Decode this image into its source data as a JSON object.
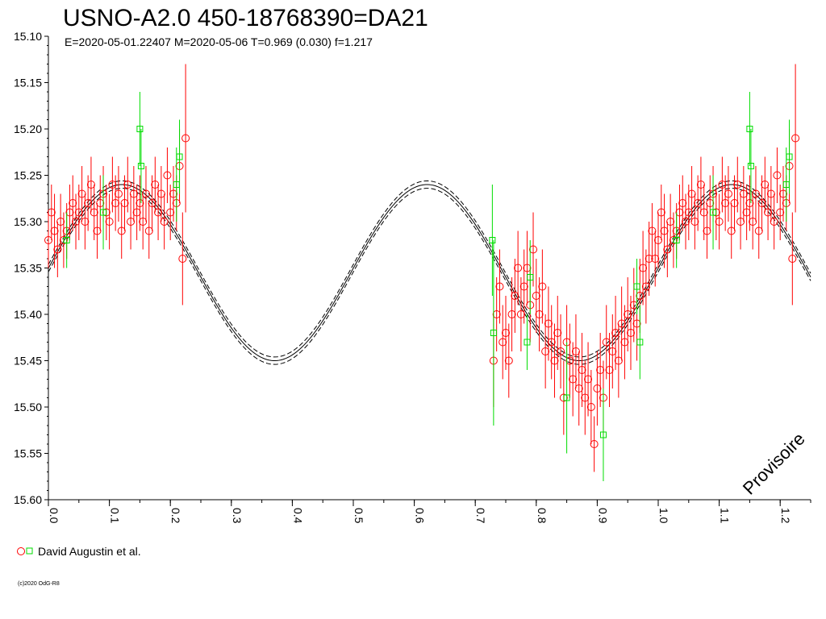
{
  "chart_data": {
    "type": "scatter",
    "title": "USNO-A2.0 450-18768390=DA21",
    "subtitle": "E=2020-05-01.22407    M=2020-05-06    T=0.969 (0.030)    f=1.217",
    "watermark": "Provisoire",
    "copyright": "(c)2020 OdG-R8",
    "xlabel": "",
    "ylabel": "",
    "xlim": [
      0.0,
      1.25
    ],
    "ylim": [
      15.6,
      15.1
    ],
    "y_inverted": true,
    "x_ticks": [
      "0.0",
      "0.1",
      "0.2",
      "0.3",
      "0.4",
      "0.5",
      "0.6",
      "0.7",
      "0.8",
      "0.9",
      "1.0",
      "1.1",
      "1.2"
    ],
    "y_ticks": [
      "15.10",
      "15.15",
      "15.20",
      "15.25",
      "15.30",
      "15.35",
      "15.40",
      "15.45",
      "15.50",
      "15.55",
      "15.60"
    ],
    "grid": false,
    "legend": {
      "placement": "bottom-left",
      "label": "David Augustin et al.",
      "marker_colors": [
        "#ff0000",
        "#00dd00"
      ]
    },
    "model_curve": {
      "type": "sinusoid",
      "period_phase": 0.5,
      "mean_mag": 15.355,
      "amplitude": 0.095,
      "max_brightness_phase": 0.121,
      "envelope": 0.004,
      "color": "#000000"
    },
    "series": [
      {
        "marker": "circle",
        "color": "#ff0000",
        "points": [
          {
            "x": 0.0,
            "y": 15.32,
            "err": 0.03
          },
          {
            "x": 0.005,
            "y": 15.29,
            "err": 0.03
          },
          {
            "x": 0.01,
            "y": 15.31,
            "err": 0.04
          },
          {
            "x": 0.015,
            "y": 15.33,
            "err": 0.03
          },
          {
            "x": 0.02,
            "y": 15.3,
            "err": 0.03
          },
          {
            "x": 0.025,
            "y": 15.32,
            "err": 0.03
          },
          {
            "x": 0.03,
            "y": 15.31,
            "err": 0.03
          },
          {
            "x": 0.035,
            "y": 15.29,
            "err": 0.03
          },
          {
            "x": 0.04,
            "y": 15.28,
            "err": 0.03
          },
          {
            "x": 0.045,
            "y": 15.3,
            "err": 0.03
          },
          {
            "x": 0.05,
            "y": 15.29,
            "err": 0.03
          },
          {
            "x": 0.055,
            "y": 15.27,
            "err": 0.03
          },
          {
            "x": 0.06,
            "y": 15.3,
            "err": 0.03
          },
          {
            "x": 0.065,
            "y": 15.28,
            "err": 0.03
          },
          {
            "x": 0.07,
            "y": 15.26,
            "err": 0.03
          },
          {
            "x": 0.075,
            "y": 15.29,
            "err": 0.03
          },
          {
            "x": 0.08,
            "y": 15.31,
            "err": 0.03
          },
          {
            "x": 0.085,
            "y": 15.28,
            "err": 0.03
          },
          {
            "x": 0.09,
            "y": 15.27,
            "err": 0.03
          },
          {
            "x": 0.095,
            "y": 15.29,
            "err": 0.03
          },
          {
            "x": 0.1,
            "y": 15.3,
            "err": 0.03
          },
          {
            "x": 0.105,
            "y": 15.26,
            "err": 0.03
          },
          {
            "x": 0.11,
            "y": 15.28,
            "err": 0.03
          },
          {
            "x": 0.115,
            "y": 15.27,
            "err": 0.03
          },
          {
            "x": 0.12,
            "y": 15.31,
            "err": 0.03
          },
          {
            "x": 0.125,
            "y": 15.28,
            "err": 0.03
          },
          {
            "x": 0.13,
            "y": 15.26,
            "err": 0.03
          },
          {
            "x": 0.135,
            "y": 15.3,
            "err": 0.03
          },
          {
            "x": 0.14,
            "y": 15.27,
            "err": 0.03
          },
          {
            "x": 0.145,
            "y": 15.29,
            "err": 0.03
          },
          {
            "x": 0.15,
            "y": 15.28,
            "err": 0.03
          },
          {
            "x": 0.155,
            "y": 15.3,
            "err": 0.03
          },
          {
            "x": 0.16,
            "y": 15.27,
            "err": 0.03
          },
          {
            "x": 0.165,
            "y": 15.31,
            "err": 0.03
          },
          {
            "x": 0.17,
            "y": 15.28,
            "err": 0.03
          },
          {
            "x": 0.175,
            "y": 15.26,
            "err": 0.03
          },
          {
            "x": 0.18,
            "y": 15.29,
            "err": 0.03
          },
          {
            "x": 0.185,
            "y": 15.27,
            "err": 0.03
          },
          {
            "x": 0.19,
            "y": 15.3,
            "err": 0.03
          },
          {
            "x": 0.195,
            "y": 15.25,
            "err": 0.03
          },
          {
            "x": 0.2,
            "y": 15.29,
            "err": 0.03
          },
          {
            "x": 0.205,
            "y": 15.27,
            "err": 0.03
          },
          {
            "x": 0.21,
            "y": 15.28,
            "err": 0.03
          },
          {
            "x": 0.215,
            "y": 15.24,
            "err": 0.04
          },
          {
            "x": 0.22,
            "y": 15.34,
            "err": 0.05
          },
          {
            "x": 0.225,
            "y": 15.21,
            "err": 0.08
          },
          {
            "x": 0.73,
            "y": 15.45,
            "err": 0.05
          },
          {
            "x": 0.735,
            "y": 15.4,
            "err": 0.04
          },
          {
            "x": 0.74,
            "y": 15.37,
            "err": 0.04
          },
          {
            "x": 0.745,
            "y": 15.43,
            "err": 0.04
          },
          {
            "x": 0.75,
            "y": 15.42,
            "err": 0.04
          },
          {
            "x": 0.755,
            "y": 15.45,
            "err": 0.04
          },
          {
            "x": 0.76,
            "y": 15.4,
            "err": 0.04
          },
          {
            "x": 0.765,
            "y": 15.38,
            "err": 0.04
          },
          {
            "x": 0.77,
            "y": 15.35,
            "err": 0.04
          },
          {
            "x": 0.775,
            "y": 15.4,
            "err": 0.04
          },
          {
            "x": 0.78,
            "y": 15.37,
            "err": 0.04
          },
          {
            "x": 0.785,
            "y": 15.35,
            "err": 0.04
          },
          {
            "x": 0.79,
            "y": 15.39,
            "err": 0.04
          },
          {
            "x": 0.795,
            "y": 15.33,
            "err": 0.04
          },
          {
            "x": 0.8,
            "y": 15.38,
            "err": 0.04
          },
          {
            "x": 0.805,
            "y": 15.4,
            "err": 0.04
          },
          {
            "x": 0.81,
            "y": 15.37,
            "err": 0.04
          },
          {
            "x": 0.815,
            "y": 15.44,
            "err": 0.04
          },
          {
            "x": 0.82,
            "y": 15.41,
            "err": 0.04
          },
          {
            "x": 0.825,
            "y": 15.43,
            "err": 0.04
          },
          {
            "x": 0.83,
            "y": 15.45,
            "err": 0.04
          },
          {
            "x": 0.835,
            "y": 15.42,
            "err": 0.04
          },
          {
            "x": 0.84,
            "y": 15.44,
            "err": 0.04
          },
          {
            "x": 0.845,
            "y": 15.49,
            "err": 0.04
          },
          {
            "x": 0.85,
            "y": 15.43,
            "err": 0.04
          },
          {
            "x": 0.855,
            "y": 15.45,
            "err": 0.04
          },
          {
            "x": 0.86,
            "y": 15.47,
            "err": 0.04
          },
          {
            "x": 0.865,
            "y": 15.44,
            "err": 0.04
          },
          {
            "x": 0.87,
            "y": 15.48,
            "err": 0.04
          },
          {
            "x": 0.875,
            "y": 15.46,
            "err": 0.04
          },
          {
            "x": 0.88,
            "y": 15.49,
            "err": 0.04
          },
          {
            "x": 0.885,
            "y": 15.47,
            "err": 0.04
          },
          {
            "x": 0.89,
            "y": 15.5,
            "err": 0.04
          },
          {
            "x": 0.895,
            "y": 15.54,
            "err": 0.03
          },
          {
            "x": 0.9,
            "y": 15.48,
            "err": 0.04
          },
          {
            "x": 0.905,
            "y": 15.46,
            "err": 0.04
          },
          {
            "x": 0.91,
            "y": 15.49,
            "err": 0.04
          },
          {
            "x": 0.915,
            "y": 15.43,
            "err": 0.04
          },
          {
            "x": 0.92,
            "y": 15.46,
            "err": 0.04
          },
          {
            "x": 0.925,
            "y": 15.44,
            "err": 0.04
          },
          {
            "x": 0.93,
            "y": 15.42,
            "err": 0.04
          },
          {
            "x": 0.935,
            "y": 15.45,
            "err": 0.04
          },
          {
            "x": 0.94,
            "y": 15.41,
            "err": 0.04
          },
          {
            "x": 0.945,
            "y": 15.43,
            "err": 0.04
          },
          {
            "x": 0.95,
            "y": 15.4,
            "err": 0.04
          },
          {
            "x": 0.955,
            "y": 15.42,
            "err": 0.04
          },
          {
            "x": 0.96,
            "y": 15.39,
            "err": 0.04
          },
          {
            "x": 0.965,
            "y": 15.41,
            "err": 0.04
          },
          {
            "x": 0.97,
            "y": 15.38,
            "err": 0.04
          },
          {
            "x": 0.975,
            "y": 15.35,
            "err": 0.04
          },
          {
            "x": 0.98,
            "y": 15.37,
            "err": 0.04
          },
          {
            "x": 0.985,
            "y": 15.34,
            "err": 0.04
          },
          {
            "x": 0.99,
            "y": 15.31,
            "err": 0.03
          },
          {
            "x": 0.995,
            "y": 15.34,
            "err": 0.03
          },
          {
            "x": 1.0,
            "y": 15.32,
            "err": 0.03
          },
          {
            "x": 1.005,
            "y": 15.29,
            "err": 0.03
          },
          {
            "x": 1.01,
            "y": 15.31,
            "err": 0.04
          },
          {
            "x": 1.015,
            "y": 15.33,
            "err": 0.03
          },
          {
            "x": 1.02,
            "y": 15.3,
            "err": 0.03
          },
          {
            "x": 1.025,
            "y": 15.32,
            "err": 0.03
          },
          {
            "x": 1.03,
            "y": 15.31,
            "err": 0.03
          },
          {
            "x": 1.035,
            "y": 15.29,
            "err": 0.03
          },
          {
            "x": 1.04,
            "y": 15.28,
            "err": 0.03
          },
          {
            "x": 1.045,
            "y": 15.3,
            "err": 0.03
          },
          {
            "x": 1.05,
            "y": 15.29,
            "err": 0.03
          },
          {
            "x": 1.055,
            "y": 15.27,
            "err": 0.03
          },
          {
            "x": 1.06,
            "y": 15.3,
            "err": 0.03
          },
          {
            "x": 1.065,
            "y": 15.28,
            "err": 0.03
          },
          {
            "x": 1.07,
            "y": 15.26,
            "err": 0.03
          },
          {
            "x": 1.075,
            "y": 15.29,
            "err": 0.03
          },
          {
            "x": 1.08,
            "y": 15.31,
            "err": 0.03
          },
          {
            "x": 1.085,
            "y": 15.28,
            "err": 0.03
          },
          {
            "x": 1.09,
            "y": 15.27,
            "err": 0.03
          },
          {
            "x": 1.095,
            "y": 15.29,
            "err": 0.03
          },
          {
            "x": 1.1,
            "y": 15.3,
            "err": 0.03
          },
          {
            "x": 1.105,
            "y": 15.26,
            "err": 0.03
          },
          {
            "x": 1.11,
            "y": 15.28,
            "err": 0.03
          },
          {
            "x": 1.115,
            "y": 15.27,
            "err": 0.03
          },
          {
            "x": 1.12,
            "y": 15.31,
            "err": 0.03
          },
          {
            "x": 1.125,
            "y": 15.28,
            "err": 0.03
          },
          {
            "x": 1.13,
            "y": 15.26,
            "err": 0.03
          },
          {
            "x": 1.135,
            "y": 15.3,
            "err": 0.03
          },
          {
            "x": 1.14,
            "y": 15.27,
            "err": 0.03
          },
          {
            "x": 1.145,
            "y": 15.29,
            "err": 0.03
          },
          {
            "x": 1.15,
            "y": 15.28,
            "err": 0.03
          },
          {
            "x": 1.155,
            "y": 15.3,
            "err": 0.03
          },
          {
            "x": 1.16,
            "y": 15.27,
            "err": 0.03
          },
          {
            "x": 1.165,
            "y": 15.31,
            "err": 0.03
          },
          {
            "x": 1.17,
            "y": 15.28,
            "err": 0.03
          },
          {
            "x": 1.175,
            "y": 15.26,
            "err": 0.03
          },
          {
            "x": 1.18,
            "y": 15.29,
            "err": 0.03
          },
          {
            "x": 1.185,
            "y": 15.27,
            "err": 0.03
          },
          {
            "x": 1.19,
            "y": 15.3,
            "err": 0.03
          },
          {
            "x": 1.195,
            "y": 15.25,
            "err": 0.03
          },
          {
            "x": 1.2,
            "y": 15.29,
            "err": 0.03
          },
          {
            "x": 1.205,
            "y": 15.27,
            "err": 0.03
          },
          {
            "x": 1.21,
            "y": 15.28,
            "err": 0.03
          },
          {
            "x": 1.215,
            "y": 15.24,
            "err": 0.04
          },
          {
            "x": 1.22,
            "y": 15.34,
            "err": 0.05
          },
          {
            "x": 1.225,
            "y": 15.21,
            "err": 0.08
          }
        ]
      },
      {
        "marker": "square",
        "color": "#00dd00",
        "points": [
          {
            "x": 0.03,
            "y": 15.32,
            "err": 0.03
          },
          {
            "x": 0.09,
            "y": 15.29,
            "err": 0.04
          },
          {
            "x": 0.15,
            "y": 15.2,
            "err": 0.04
          },
          {
            "x": 0.152,
            "y": 15.24,
            "err": 0.04
          },
          {
            "x": 0.21,
            "y": 15.26,
            "err": 0.04
          },
          {
            "x": 0.215,
            "y": 15.23,
            "err": 0.04
          },
          {
            "x": 0.728,
            "y": 15.32,
            "err": 0.06
          },
          {
            "x": 0.73,
            "y": 15.42,
            "err": 0.1
          },
          {
            "x": 0.785,
            "y": 15.43,
            "err": 0.03
          },
          {
            "x": 0.79,
            "y": 15.36,
            "err": 0.04
          },
          {
            "x": 0.85,
            "y": 15.49,
            "err": 0.06
          },
          {
            "x": 0.91,
            "y": 15.53,
            "err": 0.05
          },
          {
            "x": 0.965,
            "y": 15.37,
            "err": 0.03
          },
          {
            "x": 0.97,
            "y": 15.43,
            "err": 0.04
          },
          {
            "x": 1.03,
            "y": 15.32,
            "err": 0.03
          },
          {
            "x": 1.09,
            "y": 15.29,
            "err": 0.04
          },
          {
            "x": 1.15,
            "y": 15.2,
            "err": 0.04
          },
          {
            "x": 1.152,
            "y": 15.24,
            "err": 0.04
          },
          {
            "x": 1.21,
            "y": 15.26,
            "err": 0.04
          },
          {
            "x": 1.215,
            "y": 15.23,
            "err": 0.04
          }
        ]
      }
    ]
  }
}
